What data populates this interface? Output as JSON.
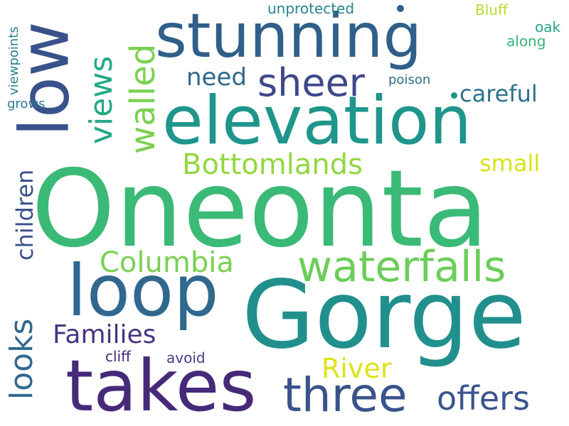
{
  "words": [
    {
      "text": "Oneonta",
      "color": "#3aba76"
    },
    {
      "text": "Gorge",
      "color": "#21908d"
    },
    {
      "text": "elevation",
      "color": "#1f958b"
    },
    {
      "text": "stunning",
      "color": "#2f5f8a"
    },
    {
      "text": "takes",
      "color": "#462a79"
    },
    {
      "text": "loop",
      "color": "#30688e"
    },
    {
      "text": "low",
      "color": "#3a528b"
    },
    {
      "text": "three",
      "color": "#3a538b"
    },
    {
      "text": "waterfalls",
      "color": "#6ccd5a"
    },
    {
      "text": "sheer",
      "color": "#3f4889"
    },
    {
      "text": "walled",
      "color": "#7ad151"
    },
    {
      "text": "views",
      "color": "#23a983"
    },
    {
      "text": "Bottomlands",
      "color": "#93d741"
    },
    {
      "text": "Columbia",
      "color": "#7ad151"
    },
    {
      "text": "offers",
      "color": "#3a548c"
    },
    {
      "text": "looks",
      "color": "#31688e"
    },
    {
      "text": "Families",
      "color": "#463480"
    },
    {
      "text": "River",
      "color": "#dde318"
    },
    {
      "text": "children",
      "color": "#3b518b"
    },
    {
      "text": "need",
      "color": "#31678e"
    },
    {
      "text": "careful",
      "color": "#2c718e"
    },
    {
      "text": "small",
      "color": "#d8e219"
    },
    {
      "text": "unprotected",
      "color": "#25858e"
    },
    {
      "text": "Bluff",
      "color": "#b5de2b"
    },
    {
      "text": "oak",
      "color": "#22a785"
    },
    {
      "text": "along",
      "color": "#34b679"
    },
    {
      "text": "poison",
      "color": "#2e6d8e"
    },
    {
      "text": "viewpoints",
      "color": "#27808e"
    },
    {
      "text": "grows",
      "color": "#2a788e"
    },
    {
      "text": "cliff",
      "color": "#482576"
    },
    {
      "text": "avoid",
      "color": "#433e85"
    }
  ],
  "colors": {
    "background": "#ffffff",
    "dot_top": "#2f5f8a",
    "dot_right": "#1f958b"
  }
}
